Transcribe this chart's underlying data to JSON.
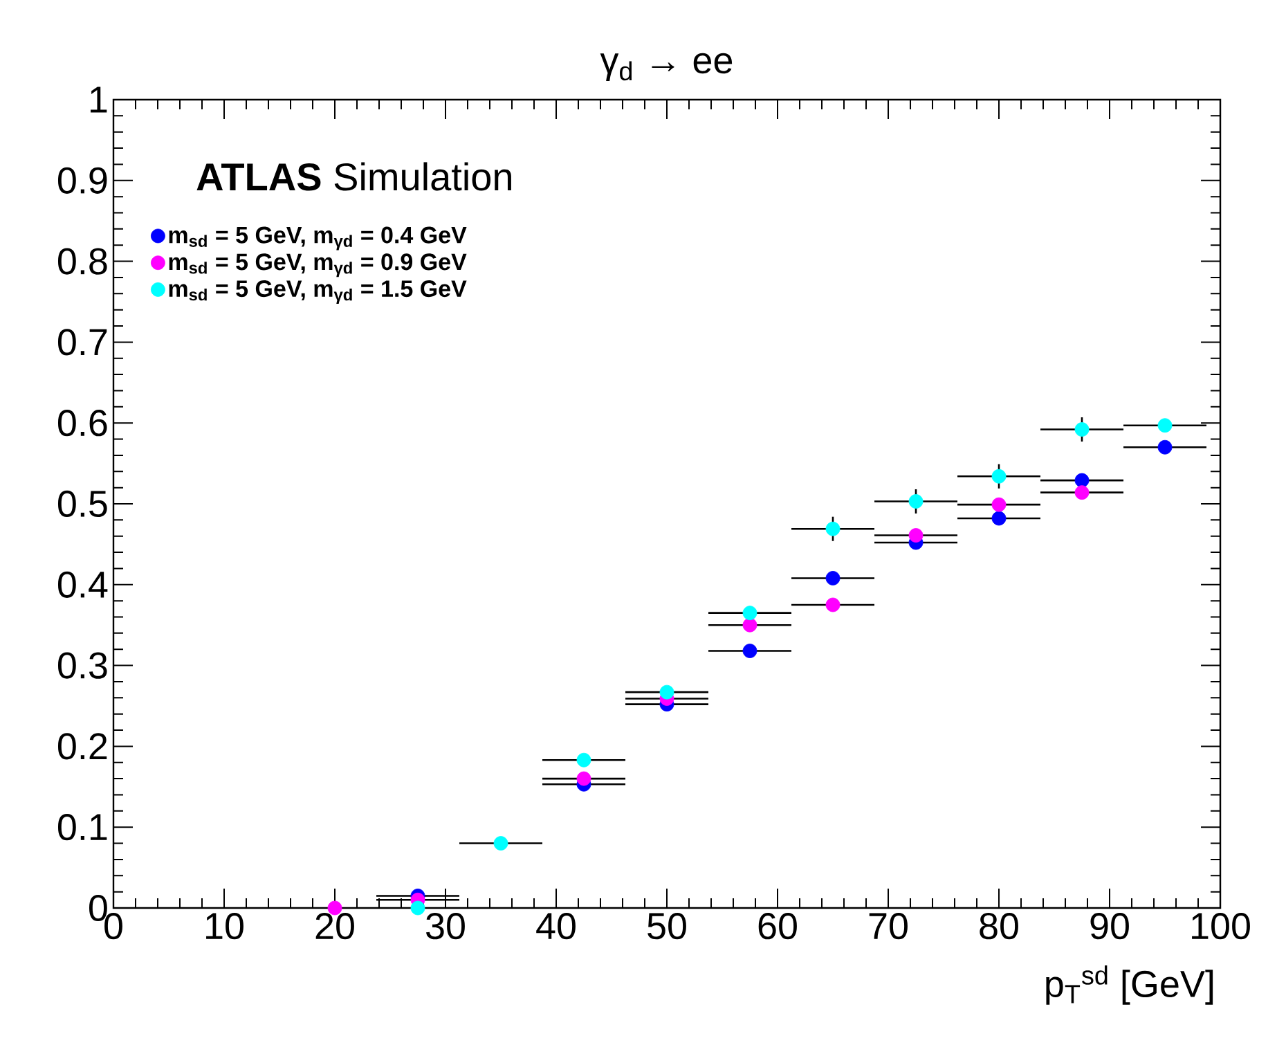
{
  "chart_data": {
    "type": "scatter",
    "title": "γ$_{d}$ → ee",
    "xlabel": "p$_{T}$$^{sd}$ [GeV]",
    "annotations": [
      "**ATLAS** Simulation"
    ],
    "x": [
      20,
      27.5,
      35,
      42.5,
      50,
      57.5,
      65,
      72.5,
      80,
      87.5,
      95
    ],
    "series": [
      {
        "name": "m$_{sd}$ = 5 GeV, m$_{γd}$ = 0.4 GeV",
        "color": "#0000ff",
        "values": [
          null,
          0.015,
          null,
          0.153,
          0.252,
          0.318,
          0.408,
          0.452,
          0.482,
          0.529,
          0.57
        ],
        "xerrors": [
          null,
          3.75,
          null,
          3.75,
          3.75,
          3.75,
          3.75,
          3.75,
          3.75,
          3.75,
          3.75
        ]
      },
      {
        "name": "m$_{sd}$ = 5 GeV, m$_{γd}$ = 0.9 GeV",
        "color": "#ff00ff",
        "values": [
          0.0,
          0.01,
          null,
          0.16,
          0.259,
          0.35,
          0.375,
          0.461,
          0.499,
          0.514,
          null
        ],
        "xerrors": [
          null,
          3.75,
          null,
          3.75,
          3.75,
          3.75,
          3.75,
          3.75,
          3.75,
          3.75,
          null
        ]
      },
      {
        "name": "m$_{sd}$ = 5 GeV, m$_{γd}$ = 1.5 GeV",
        "color": "#00ffff",
        "values": [
          null,
          0.0,
          0.08,
          0.183,
          0.267,
          0.365,
          0.469,
          0.503,
          0.534,
          0.592,
          0.597
        ],
        "xerrors": [
          null,
          null,
          3.75,
          3.75,
          3.75,
          3.75,
          3.75,
          3.75,
          3.75,
          3.75,
          3.75
        ],
        "errors": [
          null,
          null,
          null,
          null,
          null,
          null,
          0.015,
          0.015,
          0.015,
          0.015,
          null
        ]
      }
    ],
    "xlim": [
      0,
      100
    ],
    "xticks": [
      0,
      10,
      20,
      30,
      40,
      50,
      60,
      70,
      80,
      90,
      100
    ],
    "ylim": [
      0,
      1
    ],
    "yticks": [
      0,
      0.1,
      0.2,
      0.3,
      0.4,
      0.5,
      0.6,
      0.7,
      0.8,
      0.9,
      1
    ],
    "legend": "top left"
  }
}
